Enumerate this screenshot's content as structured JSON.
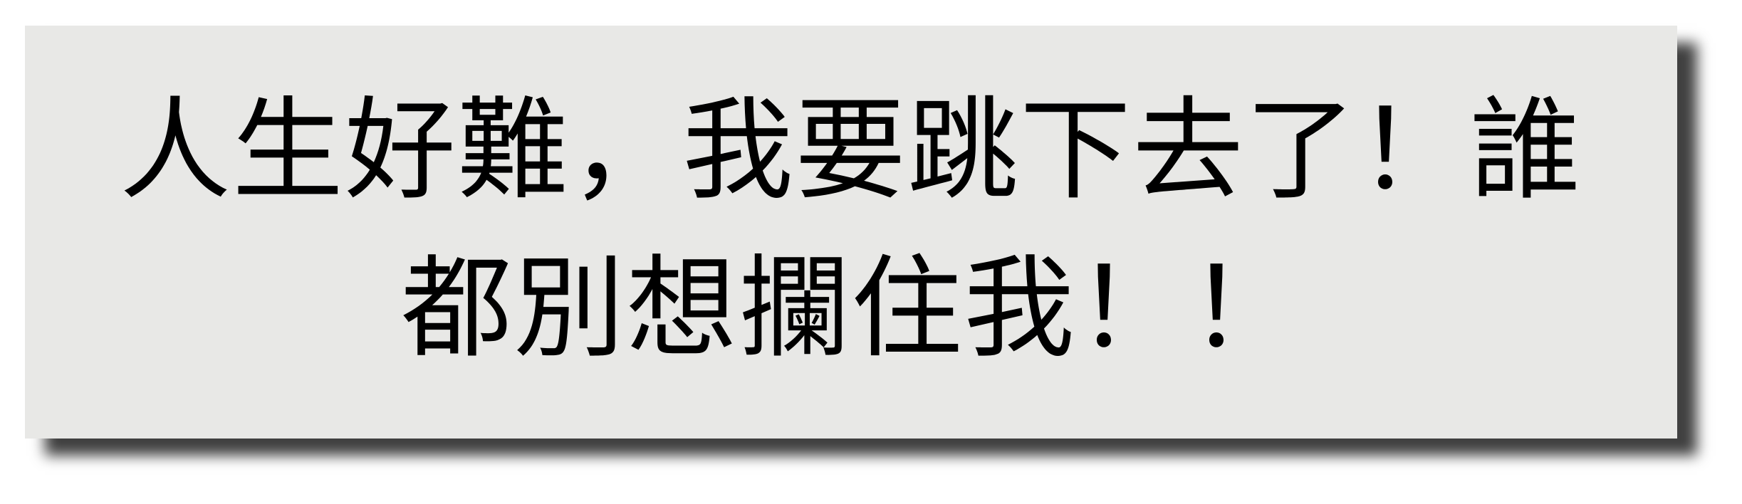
{
  "banner": {
    "line1": "人生好難，我要跳下去了！誰",
    "line2": "都別想攔住我！！",
    "text_color": "#000000",
    "background_color": "#e8e8e6"
  }
}
